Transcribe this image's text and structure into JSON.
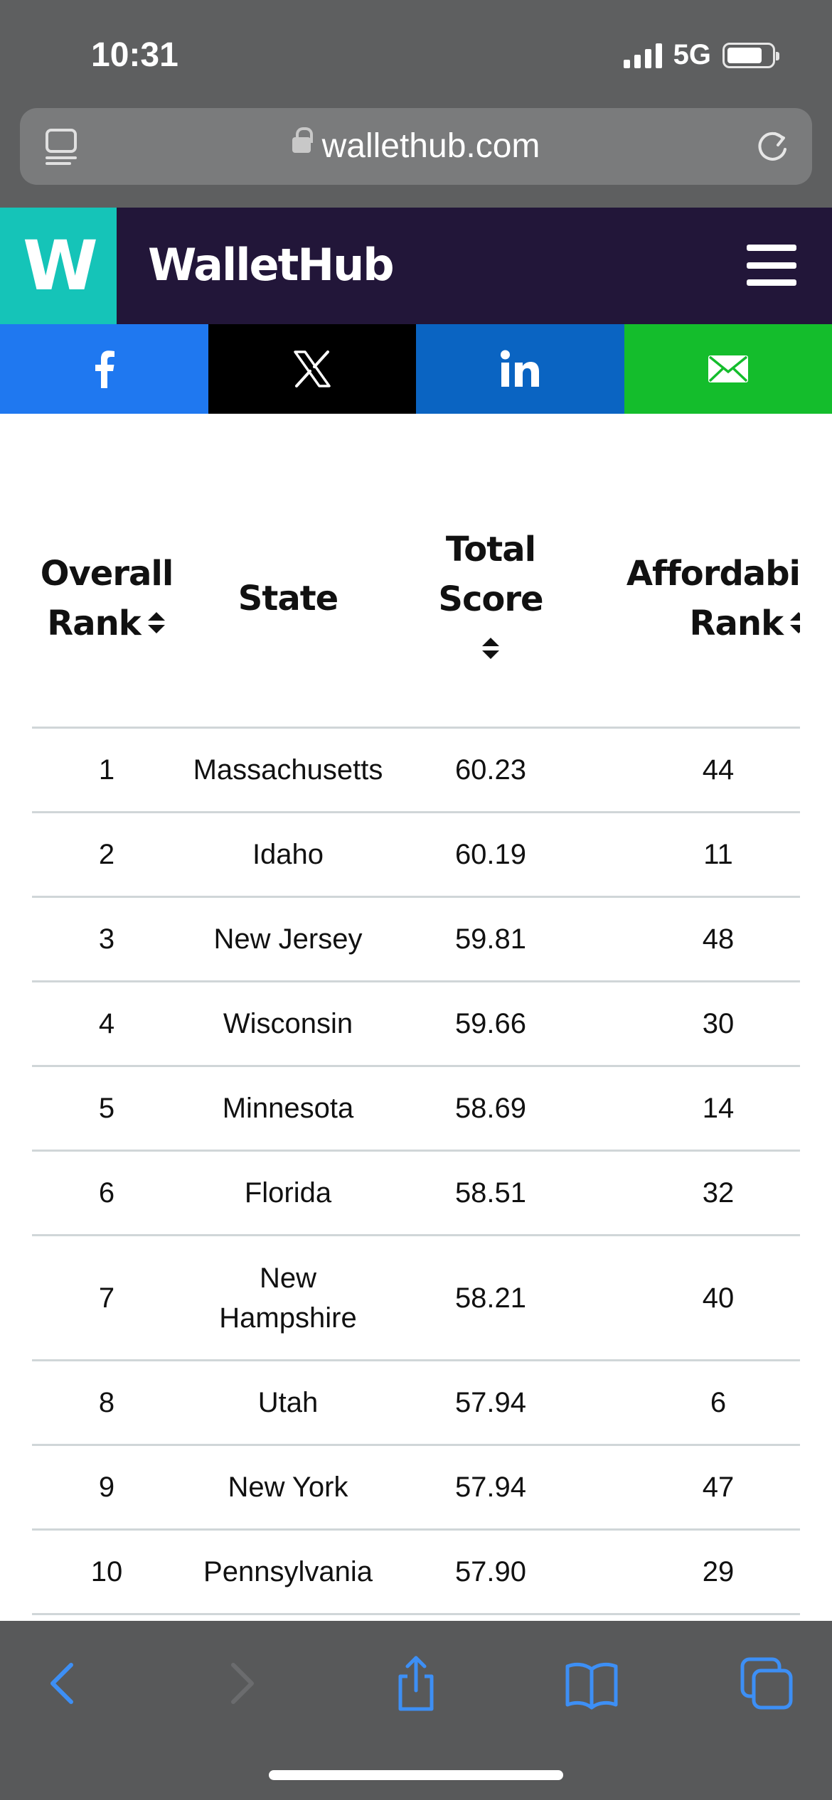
{
  "status_bar": {
    "time": "10:31",
    "network": "5G"
  },
  "browser": {
    "url": "wallethub.com"
  },
  "site": {
    "logo_letter": "W",
    "brand": "WalletHub"
  },
  "table": {
    "columns": {
      "rank": [
        "Overall",
        "Rank"
      ],
      "state": "State",
      "score": [
        "Total",
        "Score"
      ],
      "afford": [
        "Affordabi",
        "Rank"
      ]
    },
    "rows": [
      {
        "rank": "1",
        "state": "Massachusetts",
        "score": "60.23",
        "afford": "44"
      },
      {
        "rank": "2",
        "state": "Idaho",
        "score": "60.19",
        "afford": "11"
      },
      {
        "rank": "3",
        "state": "New Jersey",
        "score": "59.81",
        "afford": "48"
      },
      {
        "rank": "4",
        "state": "Wisconsin",
        "score": "59.66",
        "afford": "30"
      },
      {
        "rank": "5",
        "state": "Minnesota",
        "score": "58.69",
        "afford": "14"
      },
      {
        "rank": "6",
        "state": "Florida",
        "score": "58.51",
        "afford": "32"
      },
      {
        "rank": "7",
        "state": "New Hampshire",
        "score": "58.21",
        "afford": "40"
      },
      {
        "rank": "8",
        "state": "Utah",
        "score": "57.94",
        "afford": "6"
      },
      {
        "rank": "9",
        "state": "New York",
        "score": "57.94",
        "afford": "47"
      },
      {
        "rank": "10",
        "state": "Pennsylvania",
        "score": "57.90",
        "afford": "29"
      }
    ]
  },
  "colors": {
    "wallethub_teal": "#15c4b8",
    "wallethub_purple": "#221639",
    "facebook": "#1f78f0",
    "x": "#000000",
    "linkedin": "#0a64c2",
    "email": "#14bd2c",
    "safari_accent": "#3d8ff5"
  },
  "icons": {
    "share": [
      "facebook-icon",
      "x-icon",
      "linkedin-icon",
      "mail-icon"
    ],
    "toolbar": [
      "back-icon",
      "forward-icon",
      "share-icon",
      "bookmarks-icon",
      "tabs-icon"
    ]
  }
}
